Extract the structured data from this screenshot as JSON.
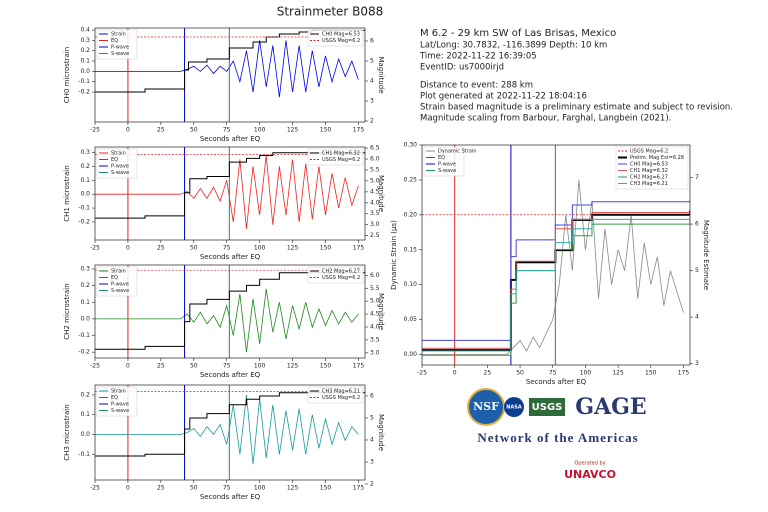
{
  "title": "Strainmeter B088",
  "header": {
    "event": "M 6.2 - 29 km SW of Las Brisas, Mexico",
    "lines": [
      "Lat/Long: 30.7832, -116.3899  Depth: 10 km",
      "Time: 2022-11-22 16:39:05",
      "EventID: us7000irjd"
    ],
    "notes": [
      "Distance to event: 288 km",
      "Plot generated at 2022-11-22 18:04:16",
      "Strain based magnitude is a preliminary estimate and subject to revision.",
      "Magnitude scaling from Barbour, Farghal, Langbein (2021)."
    ]
  },
  "logos": {
    "nsf": "NSF",
    "nasa": "NASA",
    "usgs": "USGS",
    "gage": "GAGE",
    "network": "Network of the Americas",
    "operated": "Operated by",
    "unavco": "UNAVCO"
  },
  "chart_data": [
    {
      "type": "line",
      "xlabel": "Seconds after EQ",
      "ylabel": "CH0 microstrain",
      "y2label": "Magnitude",
      "xlim": [
        -25,
        180
      ],
      "xticks": [
        -25,
        0,
        25,
        50,
        75,
        100,
        125,
        150,
        175
      ],
      "ylim": [
        -0.49,
        0.42
      ],
      "yticks": [
        -0.2,
        -0.1,
        {
          "value": 0,
          "label": "0.0"
        },
        0.1,
        0.2,
        0.3,
        0.4
      ],
      "y2lim": [
        1.95,
        6.65
      ],
      "y2ticks": [
        2,
        3,
        4,
        5,
        6
      ],
      "x": [
        -25,
        -20,
        -15,
        -10,
        -5,
        0,
        5,
        10,
        15,
        20,
        25,
        30,
        35,
        40,
        45,
        50,
        55,
        60,
        65,
        70,
        75,
        80,
        85,
        90,
        95,
        100,
        105,
        110,
        115,
        120,
        125,
        130,
        135,
        140,
        145,
        150,
        155,
        160,
        165,
        170,
        175
      ],
      "series": [
        {
          "name": "Strain",
          "color": "#0000ee",
          "values": [
            0,
            0,
            0,
            0,
            0,
            0,
            0,
            0,
            0,
            0,
            0,
            0,
            0,
            0,
            0.02,
            0.05,
            0,
            0.06,
            -0.02,
            0.05,
            0,
            0.1,
            -0.1,
            0.2,
            -0.2,
            0.3,
            -0.15,
            0.25,
            -0.25,
            0.3,
            -0.2,
            0.25,
            -0.2,
            0.2,
            -0.15,
            0.15,
            -0.1,
            0.12,
            -0.05,
            0.1,
            -0.08
          ]
        },
        {
          "name": "EQ",
          "color": "#d62728",
          "kind": "vline",
          "x": 0
        },
        {
          "name": "P-wave",
          "color": "#0000cc",
          "kind": "vline",
          "x": 43
        },
        {
          "name": "S-wave",
          "color": "#1a8c70",
          "kind": "vline",
          "x": 77
        },
        {
          "name": "CH0 Mag=6.53",
          "color": "#000000",
          "axis": "y2",
          "kind": "step",
          "x": [
            -25,
            13,
            43,
            46,
            60,
            77,
            95,
            105,
            115,
            130,
            140,
            180
          ],
          "values": [
            3.45,
            3.6,
            4.55,
            4.95,
            5.1,
            5.65,
            5.95,
            6.2,
            6.35,
            6.45,
            6.53,
            6.53
          ]
        },
        {
          "name": "USGS Mag=6.2",
          "color": "#d62728",
          "axis": "y2",
          "kind": "hline",
          "value": 6.2
        }
      ]
    },
    {
      "type": "line",
      "xlabel": "Seconds after EQ",
      "ylabel": "CH1 microstrain",
      "y2label": "Magnitude",
      "xlim": [
        -25,
        180
      ],
      "xticks": [
        -25,
        0,
        25,
        50,
        75,
        100,
        125,
        150,
        175
      ],
      "ylim": [
        -0.33,
        0.34
      ],
      "yticks": [
        -0.2,
        -0.1,
        {
          "value": 0,
          "label": "0.0"
        },
        0.1,
        0.2,
        0.3
      ],
      "y2lim": [
        2.3,
        6.55
      ],
      "y2ticks": [
        2.5,
        {
          "value": 3,
          "label": "3.0"
        },
        3.5,
        {
          "value": 4,
          "label": "4.0"
        },
        4.5,
        {
          "value": 5,
          "label": "5.0"
        },
        5.5,
        {
          "value": 6,
          "label": "6.0"
        },
        6.5
      ],
      "x": [
        -25,
        -20,
        -15,
        -10,
        -5,
        0,
        5,
        10,
        15,
        20,
        25,
        30,
        35,
        40,
        45,
        50,
        55,
        60,
        65,
        70,
        75,
        80,
        85,
        90,
        95,
        100,
        105,
        110,
        115,
        120,
        125,
        130,
        135,
        140,
        145,
        150,
        155,
        160,
        165,
        170,
        175
      ],
      "series": [
        {
          "name": "Strain",
          "color": "#ee2222",
          "values": [
            0,
            0,
            0,
            0,
            0,
            0,
            0,
            0,
            0,
            0,
            0,
            0,
            0,
            0,
            0.02,
            -0.03,
            0.04,
            -0.03,
            0.05,
            -0.05,
            0.1,
            -0.2,
            0.25,
            -0.25,
            0.2,
            -0.15,
            0.28,
            -0.22,
            0.2,
            -0.15,
            0.25,
            -0.2,
            0.22,
            -0.18,
            0.2,
            -0.15,
            0.15,
            -0.1,
            0.12,
            -0.08,
            0.06
          ]
        },
        {
          "name": "EQ",
          "color": "#d62728",
          "kind": "vline",
          "x": 0
        },
        {
          "name": "P-wave",
          "color": "#0000cc",
          "kind": "vline",
          "x": 43
        },
        {
          "name": "S-wave",
          "color": "#1a8c70",
          "kind": "vline",
          "x": 77
        },
        {
          "name": "CH1 Mag=6.32",
          "color": "#000000",
          "axis": "y2",
          "kind": "step",
          "x": [
            -25,
            13,
            43,
            47,
            60,
            77,
            90,
            100,
            110,
            180
          ],
          "values": [
            3.3,
            3.4,
            4.46,
            5.1,
            5.2,
            5.86,
            6.03,
            6.16,
            6.29,
            6.32
          ]
        },
        {
          "name": "USGS Mag=6.2",
          "color": "#d62728",
          "axis": "y2",
          "kind": "hline",
          "value": 6.2
        }
      ]
    },
    {
      "type": "line",
      "xlabel": "Seconds after EQ",
      "ylabel": "CH2 microstrain",
      "y2label": "Magnitude",
      "xlim": [
        -25,
        180
      ],
      "xticks": [
        -25,
        0,
        25,
        50,
        75,
        100,
        125,
        150,
        175
      ],
      "ylim": [
        -0.235,
        0.324
      ],
      "yticks": [
        -0.2,
        -0.1,
        {
          "value": 0,
          "label": "0.0"
        },
        0.1,
        0.2,
        0.3
      ],
      "y2lim": [
        2.8,
        6.4
      ],
      "y2ticks": [
        {
          "value": 3,
          "label": "3.0"
        },
        3.5,
        {
          "value": 4,
          "label": "4.0"
        },
        4.5,
        {
          "value": 5,
          "label": "5.0"
        },
        5.5,
        {
          "value": 6,
          "label": "6.0"
        }
      ],
      "x": [
        -25,
        -20,
        -15,
        -10,
        -5,
        0,
        5,
        10,
        15,
        20,
        25,
        30,
        35,
        40,
        45,
        50,
        55,
        60,
        65,
        70,
        75,
        80,
        85,
        90,
        95,
        100,
        105,
        110,
        115,
        120,
        125,
        130,
        135,
        140,
        145,
        150,
        155,
        160,
        165,
        170,
        175
      ],
      "series": [
        {
          "name": "Strain",
          "color": "#1f8a1f",
          "values": [
            0,
            0,
            0,
            0,
            0,
            0,
            0,
            0,
            0,
            0,
            0,
            0,
            0,
            0,
            0.03,
            -0.02,
            0.04,
            -0.03,
            0.02,
            -0.05,
            0.08,
            -0.1,
            0.15,
            -0.2,
            0.12,
            -0.15,
            0.18,
            -0.08,
            0.1,
            -0.12,
            0.08,
            -0.06,
            0.1,
            -0.05,
            0.06,
            -0.04,
            0.05,
            -0.03,
            0.04,
            -0.02,
            0.03
          ]
        },
        {
          "name": "EQ",
          "color": "#d62728",
          "kind": "vline",
          "x": 0
        },
        {
          "name": "P-wave",
          "color": "#0000cc",
          "kind": "vline",
          "x": 43
        },
        {
          "name": "S-wave",
          "color": "#1a8c70",
          "kind": "vline",
          "x": 77
        },
        {
          "name": "CH2 Mag=6.27",
          "color": "#000000",
          "axis": "y2",
          "kind": "step",
          "x": [
            -25,
            13,
            43,
            47,
            60,
            77,
            90,
            100,
            115,
            180
          ],
          "values": [
            3.14,
            3.25,
            4.21,
            4.89,
            5.07,
            5.39,
            5.61,
            5.85,
            6.1,
            6.27
          ]
        },
        {
          "name": "USGS Mag=6.2",
          "color": "#d62728",
          "axis": "y2",
          "kind": "hline",
          "value": 6.2
        }
      ]
    },
    {
      "type": "line",
      "xlabel": "Seconds after EQ",
      "ylabel": "CH3 microstrain",
      "y2label": "Magnitude",
      "xlim": [
        -25,
        180
      ],
      "xticks": [
        -25,
        0,
        25,
        50,
        75,
        100,
        125,
        150,
        175
      ],
      "ylim": [
        -0.23,
        0.25
      ],
      "yticks": [
        -0.1,
        {
          "value": 0,
          "label": "0.0"
        },
        0.1,
        0.2
      ],
      "y2lim": [
        2.18,
        6.5
      ],
      "y2ticks": [
        2,
        3,
        4,
        5,
        6
      ],
      "x": [
        -25,
        -20,
        -15,
        -10,
        -5,
        0,
        5,
        10,
        15,
        20,
        25,
        30,
        35,
        40,
        45,
        50,
        55,
        60,
        65,
        70,
        75,
        80,
        85,
        90,
        95,
        100,
        105,
        110,
        115,
        120,
        125,
        130,
        135,
        140,
        145,
        150,
        155,
        160,
        165,
        170,
        175
      ],
      "series": [
        {
          "name": "Strain",
          "color": "#1a9a9a",
          "values": [
            0,
            0,
            0,
            0,
            0,
            0,
            0,
            0,
            0,
            0,
            0,
            0,
            0,
            0,
            0.01,
            0.03,
            -0.01,
            0.04,
            0,
            0.05,
            -0.05,
            0.15,
            -0.1,
            0.2,
            -0.15,
            0.18,
            -0.12,
            0.15,
            -0.1,
            0.12,
            -0.08,
            0.13,
            -0.1,
            0.1,
            -0.07,
            0.08,
            -0.05,
            0.06,
            -0.03,
            0.04,
            0
          ]
        },
        {
          "name": "EQ",
          "color": "#d62728",
          "kind": "vline",
          "x": 0
        },
        {
          "name": "P-wave",
          "color": "#0000cc",
          "kind": "vline",
          "x": 43
        },
        {
          "name": "S-wave",
          "color": "#1a8c70",
          "kind": "vline",
          "x": 77
        },
        {
          "name": "CH3 Mag=6.21",
          "color": "#000000",
          "axis": "y2",
          "kind": "step",
          "x": [
            -25,
            13,
            43,
            47,
            60,
            77,
            90,
            100,
            115,
            180
          ],
          "values": [
            3.27,
            3.35,
            4.5,
            5.0,
            5.2,
            5.6,
            5.85,
            6.0,
            6.15,
            6.21
          ]
        },
        {
          "name": "USGS Mag=6.2",
          "color": "#d62728",
          "axis": "y2",
          "kind": "hline",
          "value": 6.2
        }
      ]
    },
    {
      "type": "line",
      "xlabel": "Seconds after EQ",
      "ylabel": "Dynamic Strain (µs)",
      "y2label": "Magnitude Estimate",
      "xlim": [
        -25,
        180
      ],
      "xticks": [
        -25,
        0,
        25,
        50,
        75,
        100,
        125,
        150,
        175
      ],
      "ylim": [
        -0.015,
        0.3
      ],
      "yticks": [
        {
          "value": 0,
          "label": "0.00"
        },
        {
          "value": 0.05,
          "label": "0.05"
        },
        {
          "value": 0.1,
          "label": "0.10"
        },
        {
          "value": 0.15,
          "label": "0.15"
        },
        {
          "value": 0.2,
          "label": "0.20"
        },
        {
          "value": 0.25,
          "label": "0.25"
        },
        {
          "value": 0.3,
          "label": "0.30"
        }
      ],
      "y2lim": [
        2.97,
        7.7
      ],
      "y2ticks": [
        3,
        4,
        5,
        6,
        7
      ],
      "x": [
        -25,
        -20,
        -15,
        -10,
        -5,
        0,
        5,
        10,
        15,
        20,
        25,
        30,
        35,
        40,
        45,
        50,
        55,
        60,
        65,
        70,
        75,
        80,
        85,
        90,
        95,
        100,
        105,
        110,
        115,
        120,
        125,
        130,
        135,
        140,
        145,
        150,
        155,
        160,
        165,
        170,
        175
      ],
      "series": [
        {
          "name": "Dynamic Strain",
          "color": "#888888",
          "values": [
            0,
            0,
            0,
            0,
            0,
            0,
            0,
            0,
            0,
            0,
            0,
            0,
            0,
            0,
            0.01,
            0.02,
            0.005,
            0.025,
            0.01,
            0.03,
            0.05,
            0.1,
            0.2,
            0.12,
            0.25,
            0.15,
            0.22,
            0.08,
            0.18,
            0.1,
            0.15,
            0.12,
            0.2,
            0.08,
            0.16,
            0.1,
            0.14,
            0.07,
            0.12,
            0.09,
            0.06
          ]
        },
        {
          "name": "EQ",
          "color": "#d62728",
          "kind": "vline",
          "x": 0
        },
        {
          "name": "P-wave",
          "color": "#0000cc",
          "kind": "vline",
          "x": 43
        },
        {
          "name": "S-wave",
          "color": "#1a8c70",
          "kind": "vline",
          "x": 77
        },
        {
          "name": "USGS Mag=6.2",
          "color": "#d62728",
          "axis": "y2",
          "kind": "hline",
          "value": 6.2
        },
        {
          "name": "Prelim. Mag Est=6.28",
          "color": "#000000",
          "axis": "y2",
          "kind": "step",
          "width": 2,
          "x": [
            -25,
            43,
            47,
            77,
            90,
            105,
            180
          ],
          "values": [
            3.29,
            4.8,
            5.18,
            5.44,
            6.09,
            6.2,
            6.28
          ]
        },
        {
          "name": "CH0 Mag=6.53",
          "color": "#4444dd",
          "axis": "y2",
          "kind": "step",
          "x": [
            -25,
            43,
            47,
            77,
            90,
            105,
            180
          ],
          "values": [
            3.5,
            5.3,
            5.66,
            5.98,
            6.41,
            6.48,
            6.53
          ]
        },
        {
          "name": "CH1 Mag=6.32",
          "color": "#e05555",
          "axis": "y2",
          "kind": "step",
          "x": [
            -25,
            43,
            47,
            77,
            90,
            105,
            180
          ],
          "values": [
            3.33,
            4.6,
            5.2,
            5.9,
            6.1,
            6.25,
            6.32
          ]
        },
        {
          "name": "CH2 Mag=6.27",
          "color": "#3a9a3a",
          "axis": "y2",
          "kind": "step",
          "x": [
            -25,
            43,
            47,
            77,
            90,
            105,
            180
          ],
          "values": [
            3.18,
            4.3,
            5.0,
            5.45,
            5.75,
            6.0,
            6.27
          ]
        },
        {
          "name": "CH3 Mag=6.21",
          "color": "#33aaaa",
          "axis": "y2",
          "kind": "step",
          "x": [
            -25,
            43,
            47,
            77,
            90,
            105,
            180
          ],
          "values": [
            3.27,
            4.5,
            5.0,
            5.6,
            5.9,
            6.1,
            6.21
          ]
        }
      ]
    }
  ]
}
